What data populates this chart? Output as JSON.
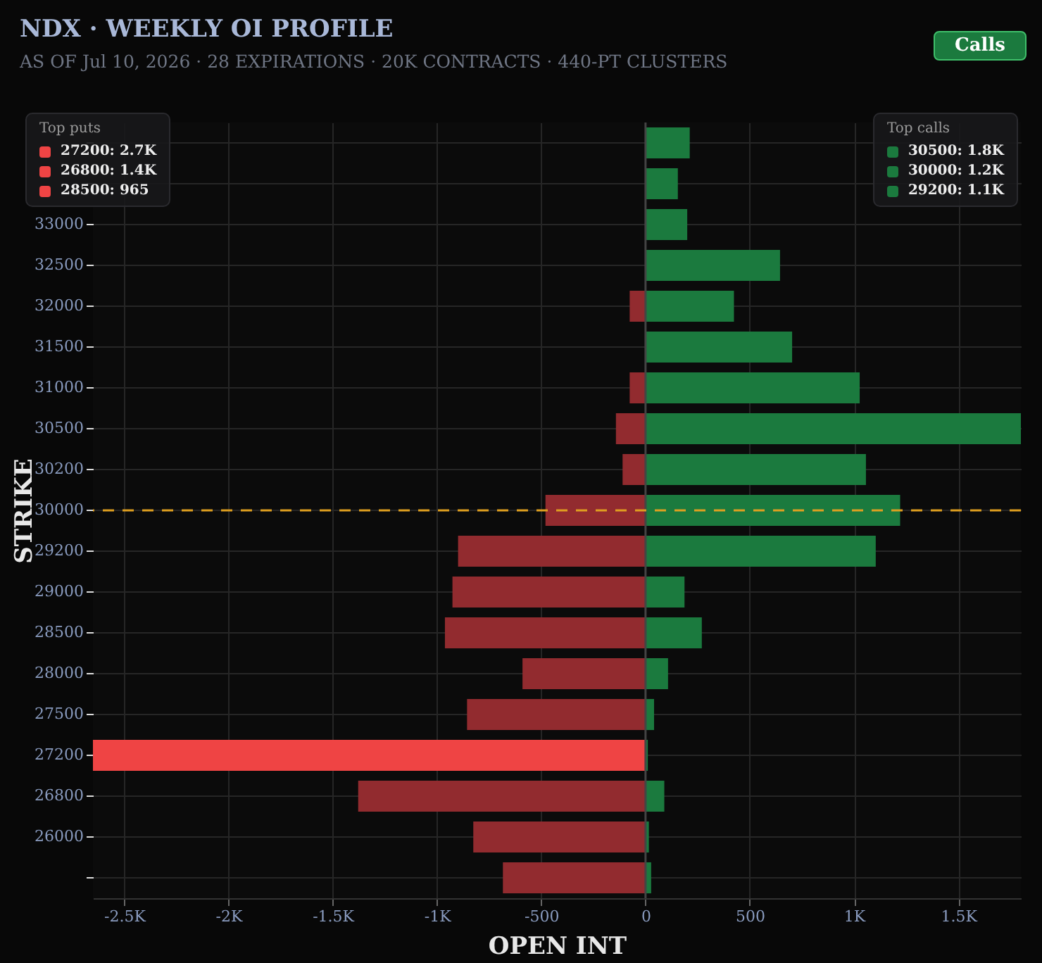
{
  "chart_data": {
    "type": "bar",
    "orientation": "horizontal",
    "title": "NDX · WEEKLY OI PROFILE",
    "subtitle": "AS OF Jul 10, 2026 · 28 EXPIRATIONS · 20K CONTRACTS · 440-PT CLUSTERS",
    "xlabel": "OPEN INT",
    "ylabel": "STRIKE",
    "categories": [
      null,
      null,
      "33000",
      "32500",
      "32000",
      "31500",
      "31000",
      "30500",
      "30200",
      "30000",
      "29200",
      "29000",
      "28500",
      "28000",
      "27500",
      "27200",
      "26800",
      "26000",
      null
    ],
    "series": [
      {
        "colors": [
          "#922b2f",
          "#922b2f",
          "#922b2f",
          "#922b2f",
          "#922b2f",
          "#922b2f",
          "#922b2f",
          "#922b2f",
          "#922b2f",
          "#922b2f",
          "#922b2f",
          "#922b2f",
          "#922b2f",
          "#922b2f",
          "#922b2f",
          "#ef4444",
          "#922b2f",
          "#922b2f",
          "#922b2f"
        ],
        "values": [
          null,
          null,
          null,
          null,
          -76,
          null,
          -76,
          -142,
          -110,
          -480,
          -899,
          -926,
          -962,
          -590,
          -856,
          -2650,
          -1378,
          -826,
          -684
        ]
      },
      {
        "color": "#1b7a3e",
        "values": [
          212,
          155,
          200,
          645,
          424,
          703,
          1027,
          1800,
          1057,
          1221,
          1104,
          187,
          270,
          108,
          41,
          11,
          90,
          16,
          27
        ]
      }
    ],
    "xlim": [
      -2650,
      1800
    ],
    "xticks": [
      {
        "value": -2500,
        "label": "-2.5K"
      },
      {
        "value": -2000,
        "label": "-2K"
      },
      {
        "value": -1500,
        "label": "-1.5K"
      },
      {
        "value": -1000,
        "label": "-1K"
      },
      -500,
      0,
      500,
      {
        "value": 1000,
        "label": "1K"
      },
      {
        "value": 1500,
        "label": "1.5K"
      }
    ],
    "stacked": true,
    "ref_lines": [
      {
        "axis": "y",
        "value": "30000",
        "color": "#e0a020",
        "line_style": "dashed"
      }
    ],
    "grid": true,
    "annotations": [
      "Top puts",
      "27200: 2.7K",
      "26800: 1.4K",
      "28500: 965",
      "Top calls",
      "30500: 1.8K",
      "30000: 1.2K",
      "29200: 1.1K",
      "Calls"
    ]
  }
}
